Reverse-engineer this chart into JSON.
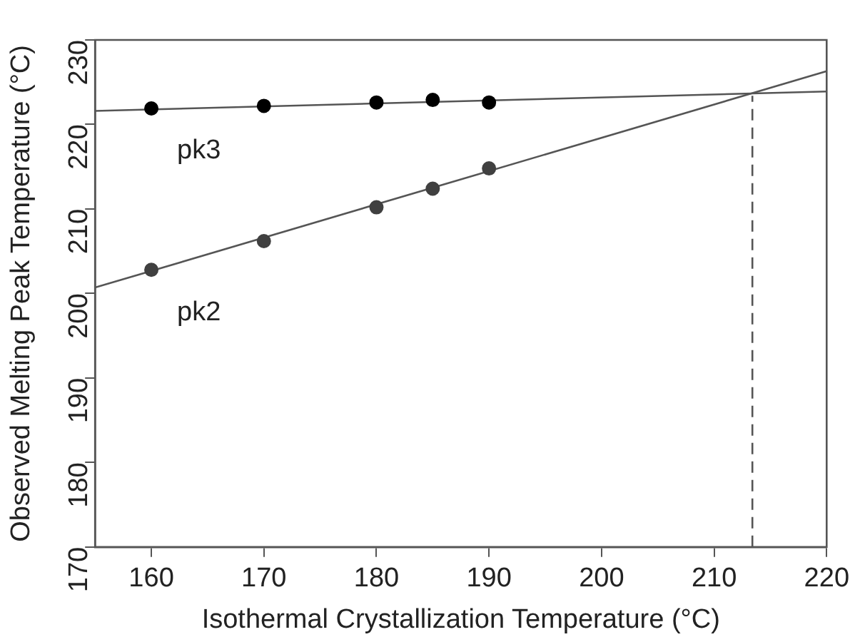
{
  "chart_data": {
    "type": "scatter",
    "xlabel": "Isothermal Crystallization Temperature (°C)",
    "ylabel": "Observed Melting Peak Temperature (°C)",
    "xlim": [
      155,
      220
    ],
    "xticks": [
      160,
      170,
      180,
      190,
      200,
      210,
      220
    ],
    "ylim": [
      170,
      230
    ],
    "yticks": [
      170,
      180,
      190,
      200,
      210,
      220,
      230
    ],
    "grid": false,
    "legend": false,
    "marker": "circle",
    "series": [
      {
        "name": "pk3",
        "color": "#000000",
        "x": [
          160,
          170,
          180,
          185,
          190
        ],
        "values": [
          221.9,
          222.2,
          222.6,
          222.9,
          222.6
        ]
      },
      {
        "type": "line",
        "color": "#555555",
        "marker": "none",
        "x": [
          155,
          220
        ],
        "values": [
          221.6,
          223.9
        ]
      },
      {
        "name": "pk2",
        "color": "#404040",
        "x": [
          160,
          170,
          180,
          185,
          190
        ],
        "values": [
          202.8,
          206.2,
          210.2,
          212.4,
          214.8
        ]
      },
      {
        "type": "line",
        "color": "#555555",
        "marker": "none",
        "x": [
          155,
          220
        ],
        "values": [
          200.7,
          226.3
        ]
      },
      {
        "type": "line",
        "color": "#555555",
        "marker": "none",
        "line_style": "dashed",
        "x": [
          213.4,
          213.4
        ],
        "values": [
          170,
          223.4
        ]
      }
    ]
  }
}
